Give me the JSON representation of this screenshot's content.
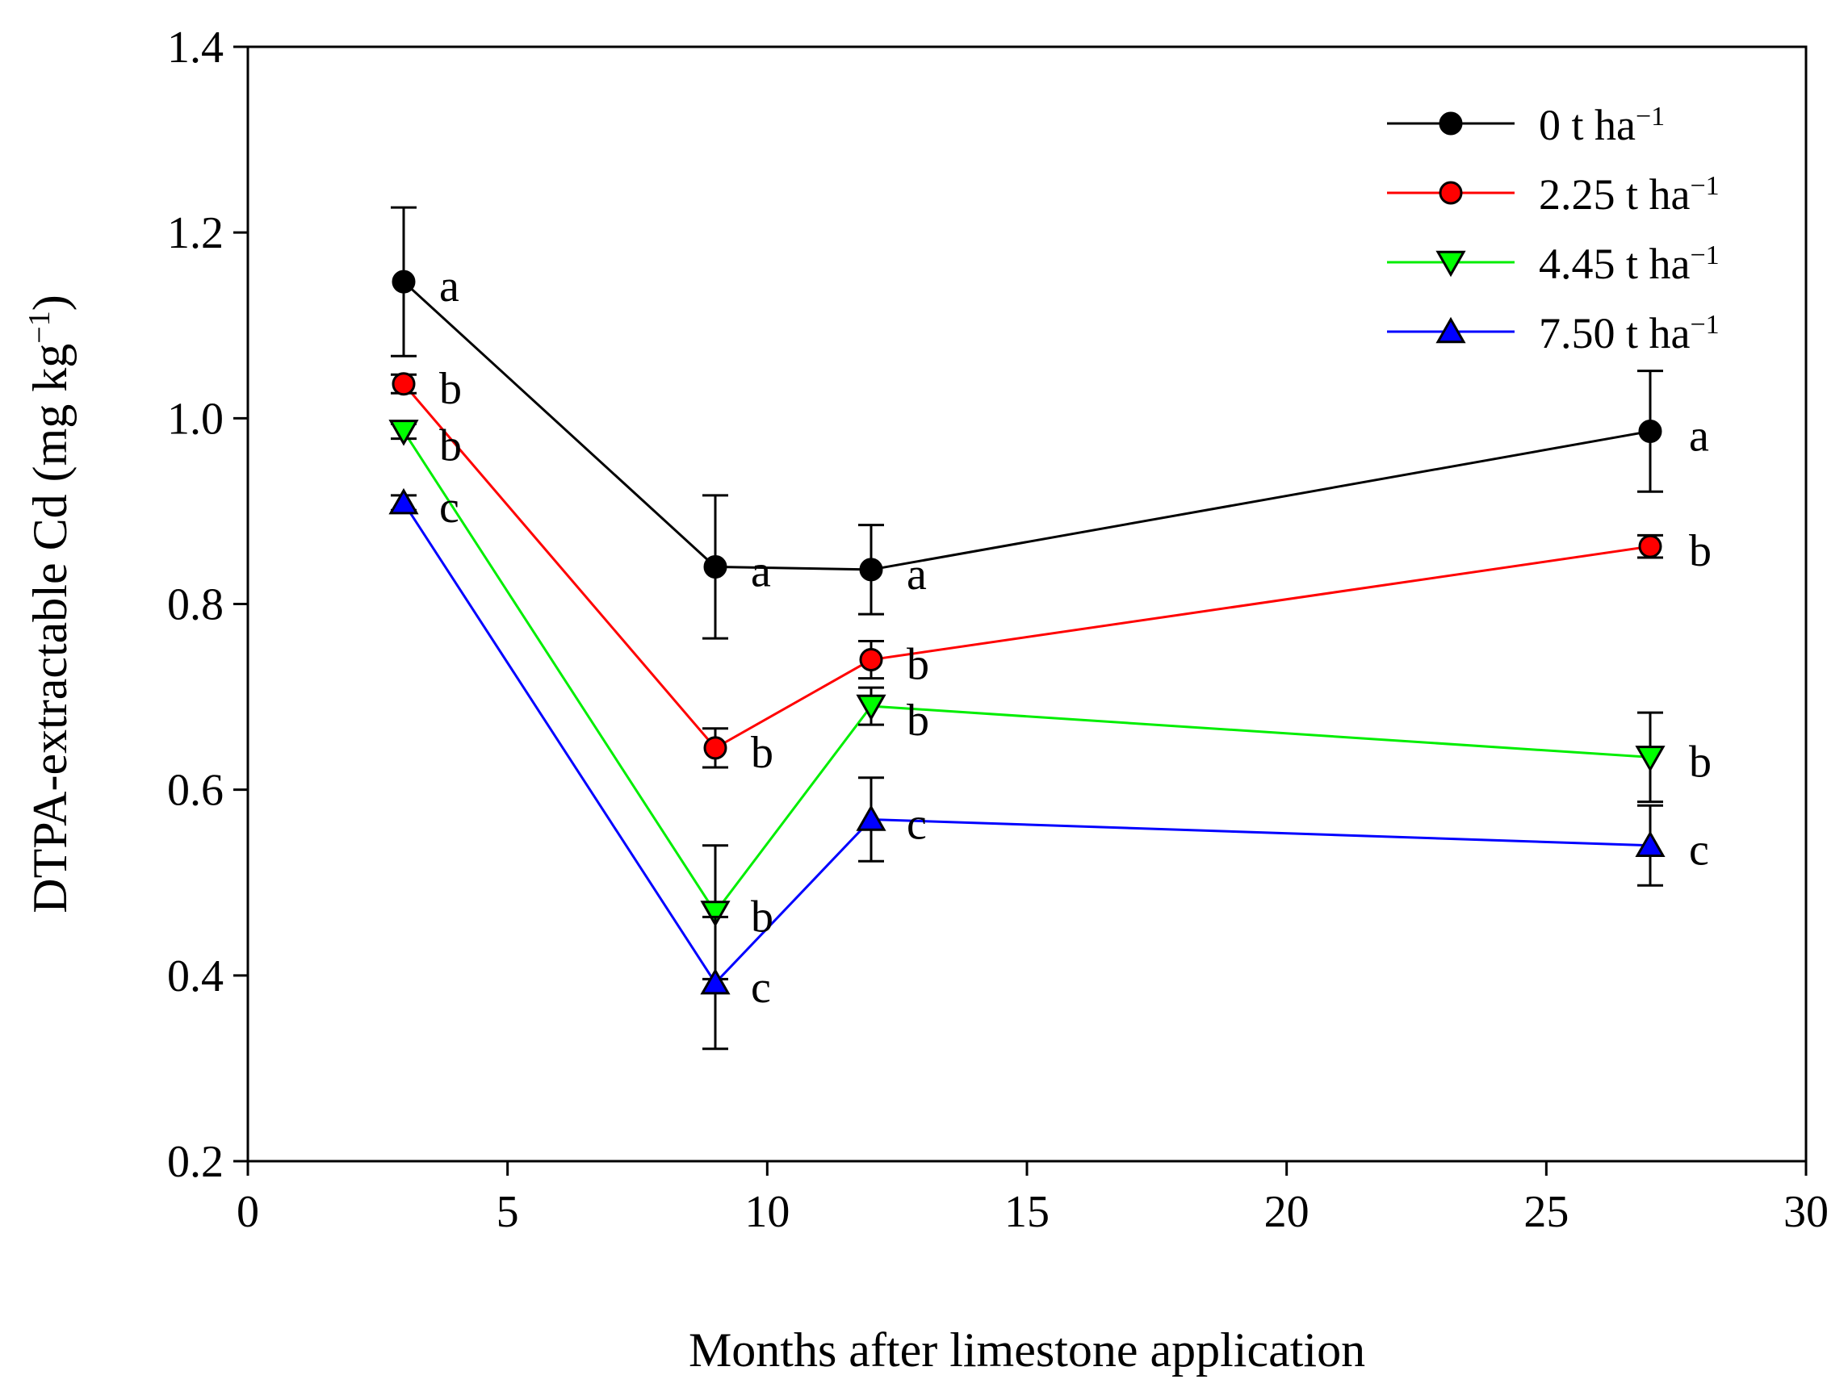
{
  "chart_data": {
    "type": "line",
    "title": "",
    "xlabel": "Months after limestone application",
    "ylabel": "DTPA-extractable Cd (mg kg",
    "ylabel_superscript": "−1",
    "ylabel_close": ")",
    "xlim": [
      0,
      30
    ],
    "ylim": [
      0.2,
      1.4
    ],
    "xticks": [
      0,
      5,
      10,
      15,
      20,
      25,
      30
    ],
    "yticks": [
      0.2,
      0.4,
      0.6,
      0.8,
      1.0,
      1.2,
      1.4
    ],
    "xtick_labels": [
      "0",
      "5",
      "10",
      "15",
      "20",
      "25",
      "30"
    ],
    "ytick_labels": [
      "0.2",
      "0.4",
      "0.6",
      "0.8",
      "1.0",
      "1.2",
      "1.4"
    ],
    "legend_position": "top-right",
    "grid": false,
    "x": [
      3,
      9,
      12,
      27
    ],
    "series": [
      {
        "name": "0 t ha",
        "unit_sup": "−1",
        "color": "#000000",
        "marker": "circle",
        "marker_fill": "#000000",
        "values": [
          1.147,
          0.84,
          0.837,
          0.986
        ],
        "errors": [
          0.08,
          0.077,
          0.048,
          0.065
        ],
        "sig": [
          "a",
          "a",
          "a",
          "a"
        ]
      },
      {
        "name": "2.25 t ha",
        "unit_sup": "−1",
        "color": "#ff0000",
        "marker": "circle",
        "marker_fill": "#ff0000",
        "values": [
          1.037,
          0.645,
          0.74,
          0.862
        ],
        "errors": [
          0.01,
          0.021,
          0.02,
          0.012
        ],
        "sig": [
          "b",
          "b",
          "b",
          "b"
        ]
      },
      {
        "name": "4.45 t ha",
        "unit_sup": "−1",
        "color": "#00ee00",
        "marker": "triangle-down",
        "marker_fill": "#00ff00",
        "values": [
          0.986,
          0.468,
          0.69,
          0.635
        ],
        "errors": [
          0.008,
          0.072,
          0.02,
          0.048
        ],
        "sig": [
          "b",
          "b",
          "b",
          "b"
        ]
      },
      {
        "name": "7.50 t ha",
        "unit_sup": "−1",
        "color": "#0000ff",
        "marker": "triangle-up",
        "marker_fill": "#0000ff",
        "values": [
          0.909,
          0.392,
          0.568,
          0.54
        ],
        "errors": [
          0.008,
          0.071,
          0.045,
          0.043
        ],
        "sig": [
          "c",
          "c",
          "c",
          "c"
        ]
      }
    ]
  }
}
